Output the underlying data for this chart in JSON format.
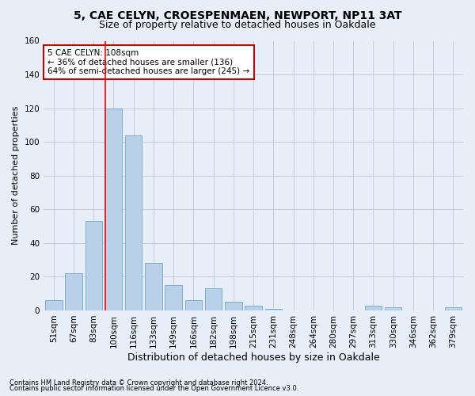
{
  "title1": "5, CAE CELYN, CROESPENMAEN, NEWPORT, NP11 3AT",
  "title2": "Size of property relative to detached houses in Oakdale",
  "xlabel": "Distribution of detached houses by size in Oakdale",
  "ylabel": "Number of detached properties",
  "footer1": "Contains HM Land Registry data © Crown copyright and database right 2024.",
  "footer2": "Contains public sector information licensed under the Open Government Licence v3.0.",
  "categories": [
    "51sqm",
    "67sqm",
    "83sqm",
    "100sqm",
    "116sqm",
    "133sqm",
    "149sqm",
    "166sqm",
    "182sqm",
    "198sqm",
    "215sqm",
    "231sqm",
    "248sqm",
    "264sqm",
    "280sqm",
    "297sqm",
    "313sqm",
    "330sqm",
    "346sqm",
    "362sqm",
    "379sqm"
  ],
  "values": [
    6,
    22,
    53,
    120,
    104,
    28,
    15,
    6,
    13,
    5,
    3,
    1,
    0,
    0,
    0,
    0,
    3,
    2,
    0,
    0,
    2
  ],
  "bar_color": "#b8d0e8",
  "bar_edge_color": "#7aaed0",
  "red_line_index": 3,
  "annotation_line1": "5 CAE CELYN: 108sqm",
  "annotation_line2": "← 36% of detached houses are smaller (136)",
  "annotation_line3": "64% of semi-detached houses are larger (245) →",
  "annotation_box_facecolor": "#ffffff",
  "annotation_box_edgecolor": "#cc0000",
  "ylim": [
    0,
    160
  ],
  "yticks": [
    0,
    20,
    40,
    60,
    80,
    100,
    120,
    140,
    160
  ],
  "bg_color": "#e8eef8",
  "plot_bg_color": "#e8eef8",
  "grid_color": "#c0cce0",
  "title_fontsize": 10,
  "subtitle_fontsize": 9,
  "tick_fontsize": 7.5,
  "ylabel_fontsize": 8,
  "xlabel_fontsize": 9,
  "footer_fontsize": 6,
  "annot_fontsize": 7.5
}
